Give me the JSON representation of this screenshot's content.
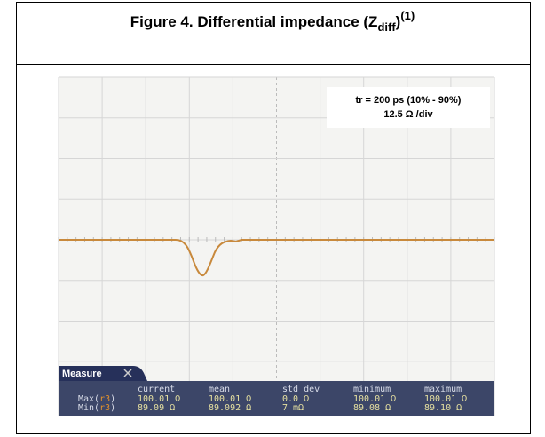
{
  "figure": {
    "title": {
      "text": "Figure 4. Differential impedance (Z",
      "subscript": "diff",
      "close": ")",
      "superscript": "(1)"
    },
    "annotation": [
      "tr = 200 ps (10% - 90%)",
      "12.5 Ω /div"
    ],
    "measure": {
      "tab": "Measure",
      "headers": [
        "current",
        "mean",
        "std dev",
        "minimum",
        "maximum"
      ],
      "rows": [
        {
          "label": [
            "Max(",
            "r3",
            ")"
          ],
          "values": [
            "100.01 Ω",
            "100.01 Ω",
            "0.0 Ω",
            "100.01 Ω",
            "100.01 Ω"
          ]
        },
        {
          "label": [
            "Min(",
            "r3",
            ")"
          ],
          "values": [
            "89.09 Ω",
            "89.092 Ω",
            "7 mΩ",
            "89.08 Ω",
            "89.10 Ω"
          ]
        }
      ]
    }
  }
}
